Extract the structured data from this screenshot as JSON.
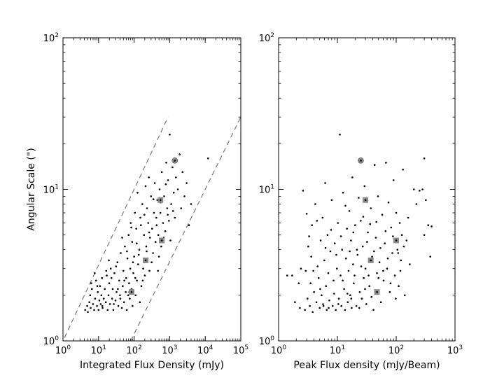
{
  "chart_data": [
    {
      "type": "scatter",
      "xlabel": "Integrated Flux Density (mJy)",
      "ylabel": "Angular Scale (\")",
      "xscale": "log",
      "yscale": "log",
      "xlim": [
        1,
        100000
      ],
      "ylim": [
        1,
        100
      ],
      "x_ticks": [
        {
          "value": 1,
          "base": "10",
          "exp": "0"
        },
        {
          "value": 10,
          "base": "10",
          "exp": "1"
        },
        {
          "value": 100,
          "base": "10",
          "exp": "2"
        },
        {
          "value": 1000,
          "base": "10",
          "exp": "3"
        },
        {
          "value": 10000,
          "base": "10",
          "exp": "4"
        },
        {
          "value": 100000,
          "base": "10",
          "exp": "5"
        }
      ],
      "y_ticks": [
        {
          "value": 1,
          "base": "10",
          "exp": "0"
        },
        {
          "value": 10,
          "base": "10",
          "exp": "1"
        },
        {
          "value": 100,
          "base": "10",
          "exp": "2"
        }
      ],
      "grid": false,
      "guide_lines": [
        {
          "style": "dashed",
          "color": "#777777",
          "points": [
            [
              1.1,
              1.05
            ],
            [
              900,
              30
            ]
          ]
        },
        {
          "style": "dashed",
          "color": "#777777",
          "points": [
            [
              80,
              1.0
            ],
            [
              100000,
              30
            ]
          ]
        }
      ],
      "points": [
        [
          4.2,
          1.6
        ],
        [
          4.8,
          1.7
        ],
        [
          5.0,
          1.55
        ],
        [
          5.5,
          1.8
        ],
        [
          5.8,
          2.0
        ],
        [
          6.0,
          1.65
        ],
        [
          6.5,
          2.2
        ],
        [
          7.0,
          1.75
        ],
        [
          7.5,
          1.6
        ],
        [
          8.0,
          1.9
        ],
        [
          8.5,
          2.5
        ],
        [
          9.0,
          1.7
        ],
        [
          9.5,
          2.1
        ],
        [
          10,
          1.6
        ],
        [
          10.5,
          1.85
        ],
        [
          11,
          2.3
        ],
        [
          11.5,
          1.75
        ],
        [
          12,
          2.0
        ],
        [
          12.5,
          2.6
        ],
        [
          13,
          1.65
        ],
        [
          14,
          1.9
        ],
        [
          15,
          2.2
        ],
        [
          16,
          1.8
        ],
        [
          17,
          2.7
        ],
        [
          18,
          1.6
        ],
        [
          19,
          2.0
        ],
        [
          20,
          2.4
        ],
        [
          21,
          1.75
        ],
        [
          22,
          3.0
        ],
        [
          24,
          1.9
        ],
        [
          25,
          2.2
        ],
        [
          26,
          1.6
        ],
        [
          28,
          2.8
        ],
        [
          30,
          1.85
        ],
        [
          32,
          2.1
        ],
        [
          34,
          3.3
        ],
        [
          36,
          1.7
        ],
        [
          38,
          2.5
        ],
        [
          40,
          2.0
        ],
        [
          42,
          3.8
        ],
        [
          45,
          1.65
        ],
        [
          48,
          2.3
        ],
        [
          50,
          2.9
        ],
        [
          52,
          1.8
        ],
        [
          55,
          4.2
        ],
        [
          58,
          2.1
        ],
        [
          60,
          2.6
        ],
        [
          62,
          1.6
        ],
        [
          65,
          3.5
        ],
        [
          68,
          2.0
        ],
        [
          70,
          5.0
        ],
        [
          72,
          2.4
        ],
        [
          75,
          1.9
        ],
        [
          78,
          3.0
        ],
        [
          80,
          6.0
        ],
        [
          85,
          2.2
        ],
        [
          88,
          4.5
        ],
        [
          90,
          1.7
        ],
        [
          95,
          2.8
        ],
        [
          100,
          3.6
        ],
        [
          105,
          7.0
        ],
        [
          110,
          2.0
        ],
        [
          115,
          5.5
        ],
        [
          120,
          2.5
        ],
        [
          125,
          9.5
        ],
        [
          130,
          3.2
        ],
        [
          140,
          4.0
        ],
        [
          145,
          1.8
        ],
        [
          150,
          6.5
        ],
        [
          160,
          2.3
        ],
        [
          170,
          8.0
        ],
        [
          180,
          3.0
        ],
        [
          190,
          5.0
        ],
        [
          200,
          2.7
        ],
        [
          210,
          10.5
        ],
        [
          220,
          4.2
        ],
        [
          230,
          7.5
        ],
        [
          240,
          3.5
        ],
        [
          250,
          6.0
        ],
        [
          260,
          12.0
        ],
        [
          270,
          2.9
        ],
        [
          280,
          4.8
        ],
        [
          300,
          9.0
        ],
        [
          320,
          5.5
        ],
        [
          340,
          3.8
        ],
        [
          360,
          7.0
        ],
        [
          380,
          11.0
        ],
        [
          400,
          4.5
        ],
        [
          420,
          6.5
        ],
        [
          450,
          8.5
        ],
        [
          480,
          5.0
        ],
        [
          500,
          3.6
        ],
        [
          520,
          10.0
        ],
        [
          550,
          7.0
        ],
        [
          580,
          4.2
        ],
        [
          600,
          13.0
        ],
        [
          650,
          6.0
        ],
        [
          700,
          9.0
        ],
        [
          750,
          5.3
        ],
        [
          800,
          15.0
        ],
        [
          850,
          7.5
        ],
        [
          900,
          11.5
        ],
        [
          950,
          6.2
        ],
        [
          1000,
          23.0
        ],
        [
          1100,
          8.0
        ],
        [
          1200,
          14.0
        ],
        [
          1300,
          9.5
        ],
        [
          1400,
          6.5
        ],
        [
          1500,
          12.0
        ],
        [
          1700,
          10.0
        ],
        [
          1900,
          17.0
        ],
        [
          2100,
          7.5
        ],
        [
          2300,
          13.0
        ],
        [
          2600,
          9.0
        ],
        [
          3000,
          11.0
        ],
        [
          3500,
          5.8
        ],
        [
          4000,
          8.0
        ],
        [
          12000,
          16.0
        ],
        [
          6.2,
          2.4
        ],
        [
          7.8,
          2.8
        ],
        [
          9.2,
          2.3
        ],
        [
          12.8,
          1.7
        ],
        [
          16.5,
          2.9
        ],
        [
          19.5,
          3.4
        ],
        [
          23,
          2.6
        ],
        [
          27,
          1.75
        ],
        [
          31,
          3.1
        ],
        [
          35,
          2.2
        ],
        [
          41,
          1.9
        ],
        [
          46,
          4.8
        ],
        [
          53,
          2.5
        ],
        [
          63,
          3.9
        ],
        [
          73,
          2.1
        ],
        [
          83,
          5.6
        ],
        [
          93,
          3.3
        ],
        [
          108,
          2.6
        ],
        [
          118,
          4.4
        ],
        [
          135,
          3.7
        ],
        [
          155,
          5.8
        ],
        [
          175,
          2.5
        ],
        [
          195,
          6.8
        ],
        [
          225,
          3.9
        ],
        [
          265,
          5.2
        ],
        [
          310,
          3.3
        ],
        [
          350,
          8.6
        ],
        [
          430,
          5.8
        ],
        [
          470,
          2.9
        ],
        [
          560,
          8.2
        ],
        [
          680,
          4.8
        ],
        [
          780,
          10.8
        ],
        [
          880,
          6.8
        ],
        [
          1050,
          4.6
        ],
        [
          1250,
          7.2
        ]
      ],
      "highlights": [
        {
          "shape": "circle",
          "points": [
            [
              1400,
              15.5
            ]
          ]
        },
        {
          "shape": "square",
          "points": [
            [
              550,
              8.5
            ],
            [
              600,
              4.6
            ],
            [
              210,
              3.4
            ],
            [
              85,
              2.1
            ]
          ]
        }
      ]
    },
    {
      "type": "scatter",
      "xlabel": "Peak Flux density (mJy/Beam)",
      "ylabel": "",
      "xscale": "log",
      "yscale": "log",
      "xlim": [
        1,
        1000
      ],
      "ylim": [
        1,
        100
      ],
      "x_ticks": [
        {
          "value": 1,
          "base": "10",
          "exp": "0"
        },
        {
          "value": 10,
          "base": "10",
          "exp": "1"
        },
        {
          "value": 100,
          "base": "10",
          "exp": "2"
        },
        {
          "value": 1000,
          "base": "10",
          "exp": "3"
        }
      ],
      "y_ticks": [
        {
          "value": 1,
          "base": "10",
          "exp": "0"
        },
        {
          "value": 10,
          "base": "10",
          "exp": "1"
        },
        {
          "value": 100,
          "base": "10",
          "exp": "2"
        }
      ],
      "grid": false,
      "guide_lines": [],
      "points": [
        [
          1.4,
          2.7
        ],
        [
          1.7,
          2.7
        ],
        [
          2.2,
          2.4
        ],
        [
          2.4,
          3.0
        ],
        [
          2.6,
          9.8
        ],
        [
          2.8,
          1.6
        ],
        [
          3.0,
          6.9
        ],
        [
          3.1,
          1.9
        ],
        [
          3.2,
          4.2
        ],
        [
          3.4,
          1.7
        ],
        [
          3.5,
          2.4
        ],
        [
          3.6,
          3.6
        ],
        [
          3.7,
          5.8
        ],
        [
          3.8,
          1.55
        ],
        [
          4.0,
          2.1
        ],
        [
          4.2,
          8.0
        ],
        [
          4.4,
          1.8
        ],
        [
          4.6,
          3.1
        ],
        [
          4.8,
          2.6
        ],
        [
          5.0,
          1.65
        ],
        [
          5.2,
          4.6
        ],
        [
          5.4,
          2.0
        ],
        [
          5.6,
          6.5
        ],
        [
          5.8,
          1.7
        ],
        [
          6.0,
          3.4
        ],
        [
          6.2,
          11.0
        ],
        [
          6.4,
          2.3
        ],
        [
          6.6,
          1.6
        ],
        [
          6.8,
          5.0
        ],
        [
          7.0,
          2.8
        ],
        [
          7.3,
          1.85
        ],
        [
          7.6,
          3.9
        ],
        [
          8.0,
          8.5
        ],
        [
          8.3,
          1.7
        ],
        [
          8.6,
          2.5
        ],
        [
          9.0,
          4.4
        ],
        [
          9.4,
          1.6
        ],
        [
          9.8,
          3.0
        ],
        [
          10.2,
          6.0
        ],
        [
          10.6,
          1.9
        ],
        [
          11,
          23.0
        ],
        [
          11.3,
          2.7
        ],
        [
          11.7,
          1.7
        ],
        [
          12,
          4.0
        ],
        [
          12.5,
          9.5
        ],
        [
          13,
          2.2
        ],
        [
          13.5,
          1.6
        ],
        [
          14,
          3.5
        ],
        [
          14.5,
          5.5
        ],
        [
          15,
          1.8
        ],
        [
          15.5,
          2.9
        ],
        [
          16,
          7.2
        ],
        [
          16.5,
          2.0
        ],
        [
          17,
          4.6
        ],
        [
          17.5,
          1.65
        ],
        [
          18,
          12.0
        ],
        [
          18.5,
          3.2
        ],
        [
          19,
          2.4
        ],
        [
          20,
          5.8
        ],
        [
          21,
          1.7
        ],
        [
          22,
          3.7
        ],
        [
          23,
          8.8
        ],
        [
          24,
          2.1
        ],
        [
          25,
          6.2
        ],
        [
          26,
          1.9
        ],
        [
          27,
          4.2
        ],
        [
          28,
          2.6
        ],
        [
          29,
          10.5
        ],
        [
          30,
          3.0
        ],
        [
          31,
          1.75
        ],
        [
          33,
          5.2
        ],
        [
          35,
          2.3
        ],
        [
          37,
          7.5
        ],
        [
          39,
          3.6
        ],
        [
          41,
          1.6
        ],
        [
          43,
          14.5
        ],
        [
          45,
          4.8
        ],
        [
          47,
          2.8
        ],
        [
          49,
          9.0
        ],
        [
          52,
          3.3
        ],
        [
          55,
          1.8
        ],
        [
          58,
          6.8
        ],
        [
          61,
          2.5
        ],
        [
          64,
          4.4
        ],
        [
          67,
          15.0
        ],
        [
          70,
          3.0
        ],
        [
          74,
          8.2
        ],
        [
          78,
          2.1
        ],
        [
          82,
          5.6
        ],
        [
          86,
          3.8
        ],
        [
          90,
          11.5
        ],
        [
          95,
          2.7
        ],
        [
          100,
          7.0
        ],
        [
          105,
          4.0
        ],
        [
          110,
          2.3
        ],
        [
          115,
          6.0
        ],
        [
          120,
          3.4
        ],
        [
          125,
          5.0
        ],
        [
          130,
          13.5
        ],
        [
          140,
          2.0
        ],
        [
          150,
          4.6
        ],
        [
          170,
          3.2
        ],
        [
          200,
          10.0
        ],
        [
          220,
          8.0
        ],
        [
          250,
          9.8
        ],
        [
          280,
          10.0
        ],
        [
          300,
          5.0
        ],
        [
          320,
          8.5
        ],
        [
          350,
          5.8
        ],
        [
          380,
          3.6
        ],
        [
          300,
          16.0
        ],
        [
          400,
          5.7
        ],
        [
          1.9,
          1.8
        ],
        [
          2.3,
          1.65
        ],
        [
          2.9,
          2.9
        ],
        [
          3.3,
          4.9
        ],
        [
          3.9,
          2.9
        ],
        [
          4.5,
          6.2
        ],
        [
          5.1,
          2.2
        ],
        [
          5.7,
          1.75
        ],
        [
          6.3,
          4.1
        ],
        [
          7.1,
          1.65
        ],
        [
          7.8,
          5.4
        ],
        [
          8.8,
          2.05
        ],
        [
          9.6,
          3.7
        ],
        [
          10.4,
          1.75
        ],
        [
          11.5,
          4.9
        ],
        [
          12.3,
          2.5
        ],
        [
          13.7,
          7.8
        ],
        [
          14.8,
          2.05
        ],
        [
          16.2,
          3.9
        ],
        [
          17.2,
          1.9
        ],
        [
          18.7,
          5.2
        ],
        [
          19.6,
          2.7
        ],
        [
          21.5,
          4.0
        ],
        [
          23.5,
          1.65
        ],
        [
          25.5,
          3.1
        ],
        [
          27.5,
          6.6
        ],
        [
          29.5,
          2.2
        ],
        [
          32,
          4.5
        ],
        [
          34,
          2.7
        ],
        [
          36,
          5.9
        ],
        [
          38,
          1.95
        ],
        [
          42,
          3.9
        ],
        [
          46,
          6.1
        ],
        [
          50,
          2.6
        ],
        [
          54,
          4.1
        ],
        [
          60,
          2.9
        ],
        [
          66,
          5.3
        ],
        [
          72,
          3.5
        ],
        [
          80,
          2.4
        ],
        [
          88,
          4.9
        ],
        [
          98,
          1.9
        ],
        [
          108,
          3.8
        ],
        [
          118,
          2.9
        ],
        [
          135,
          4.2
        ],
        [
          160,
          6.5
        ]
      ],
      "highlights": [
        {
          "shape": "circle",
          "points": [
            [
              25,
              15.5
            ]
          ]
        },
        {
          "shape": "square",
          "points": [
            [
              30,
              8.5
            ],
            [
              100,
              4.6
            ],
            [
              37,
              3.4
            ],
            [
              47,
              2.1
            ]
          ]
        }
      ]
    }
  ]
}
